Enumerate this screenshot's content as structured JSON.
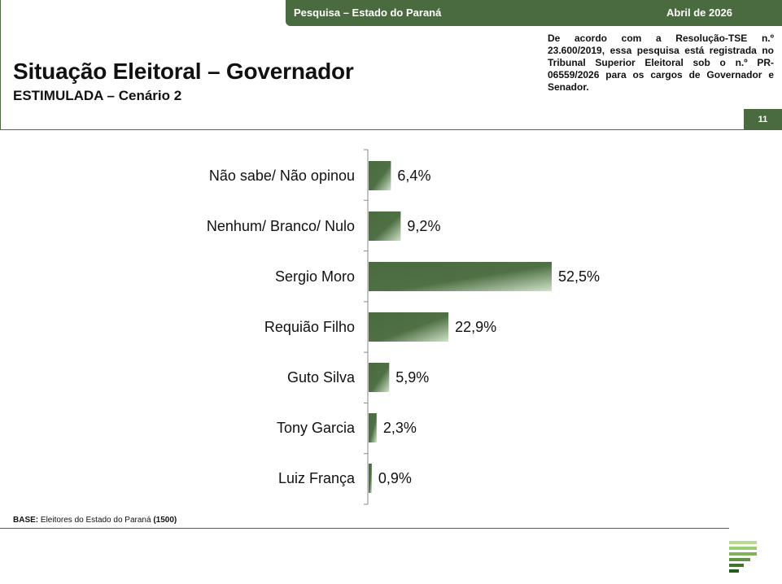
{
  "header": {
    "survey_label": "Pesquisa – Estado do Paraná",
    "date": "Abril de 2026",
    "title": "Situação Eleitoral – Governador",
    "subtitle": "ESTIMULADA – Cenário 2",
    "notice": "De acordo com a Resolução-TSE n.º 23.600/2019, essa pesquisa está registrada no Tribunal Superior Eleitoral sob o n.º PR-06559/2026 para os cargos de Governador e Senador.",
    "page_number": "11"
  },
  "footer": {
    "base_label": "BASE:",
    "base_text": " Eleitores do Estado do Paraná ",
    "base_count": "(1500)"
  },
  "colors": {
    "brand": "#4a6b40",
    "bar_dark": "#4a6b40",
    "bar_light": "#cfe3c8"
  },
  "chart_data": {
    "type": "bar",
    "orientation": "horizontal",
    "categories": [
      "Não sabe/ Não opinou",
      "Nenhum/ Branco/ Nulo",
      "Sergio Moro",
      "Requião Filho",
      "Guto Silva",
      "Tony Garcia",
      "Luiz França"
    ],
    "values": [
      6.4,
      9.2,
      52.5,
      22.9,
      5.9,
      2.3,
      0.9
    ],
    "value_labels": [
      "6,4%",
      "9,2%",
      "52,5%",
      "22,9%",
      "5,9%",
      "2,3%",
      "0,9%"
    ],
    "unit": "%",
    "xlim": [
      0,
      100
    ],
    "grid": false,
    "legend": "none"
  }
}
